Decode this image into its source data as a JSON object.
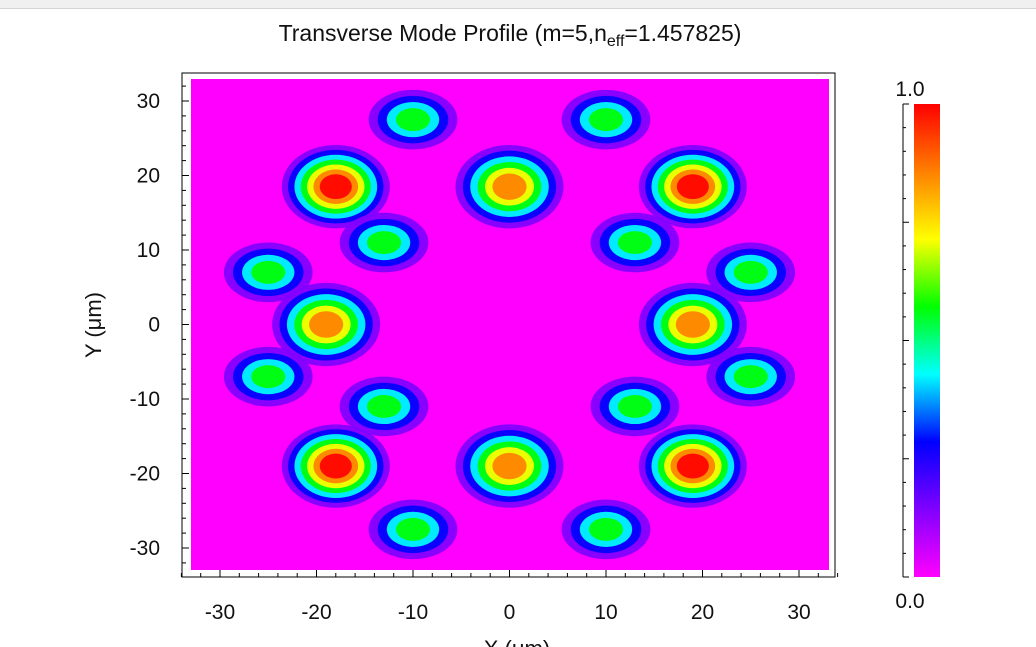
{
  "colors": {
    "background": "#ff00ff",
    "colormap": [
      "#ff00ff",
      "#8000ff",
      "#0000ff",
      "#00ffff",
      "#00ff00",
      "#ffff00",
      "#ff8000",
      "#ff0000"
    ]
  },
  "chart_data": {
    "type": "heatmap",
    "title_main": "Transverse Mode Profile (m=5,n",
    "title_sub": "eff",
    "title_end": "=1.457825)",
    "xlabel": "X (μm)",
    "ylabel": "Y (μm)",
    "xlim": [
      -30,
      30
    ],
    "ylim": [
      -30,
      30
    ],
    "x_ticks": [
      -30,
      -20,
      -10,
      0,
      10,
      20,
      30
    ],
    "x_tick_labels": [
      "-30",
      "-20",
      "-10",
      "0",
      "10",
      "20",
      "30"
    ],
    "y_ticks": [
      30,
      20,
      10,
      0,
      -10,
      -20,
      -30
    ],
    "y_tick_labels": [
      "30",
      "20",
      "10",
      "0",
      "-10",
      "-20",
      "-30"
    ],
    "colorbar_range": [
      0.0,
      1.0
    ],
    "colorbar_max_label": "1.0",
    "colorbar_min_label": "0.0",
    "lobes": [
      {
        "x": -18,
        "y": 18.5,
        "peak": 1.0
      },
      {
        "x": 0,
        "y": 18.5,
        "peak": 0.85
      },
      {
        "x": 19,
        "y": 18.5,
        "peak": 1.0
      },
      {
        "x": -19,
        "y": 0,
        "peak": 0.9
      },
      {
        "x": 19,
        "y": 0,
        "peak": 0.9
      },
      {
        "x": -18,
        "y": -19,
        "peak": 1.0
      },
      {
        "x": 0,
        "y": -19,
        "peak": 0.85
      },
      {
        "x": 19,
        "y": -19,
        "peak": 1.0
      },
      {
        "x": -10,
        "y": 27.5,
        "peak": 0.55
      },
      {
        "x": 10,
        "y": 27.5,
        "peak": 0.55
      },
      {
        "x": -13,
        "y": 11,
        "peak": 0.55
      },
      {
        "x": 13,
        "y": 11,
        "peak": 0.55
      },
      {
        "x": -25,
        "y": 7,
        "peak": 0.5
      },
      {
        "x": 25,
        "y": 7,
        "peak": 0.5
      },
      {
        "x": -25,
        "y": -7,
        "peak": 0.5
      },
      {
        "x": 25,
        "y": -7,
        "peak": 0.5
      },
      {
        "x": -13,
        "y": -11,
        "peak": 0.55
      },
      {
        "x": 13,
        "y": -11,
        "peak": 0.55
      },
      {
        "x": -10,
        "y": -27.5,
        "peak": 0.55
      },
      {
        "x": 10,
        "y": -27.5,
        "peak": 0.55
      }
    ]
  }
}
